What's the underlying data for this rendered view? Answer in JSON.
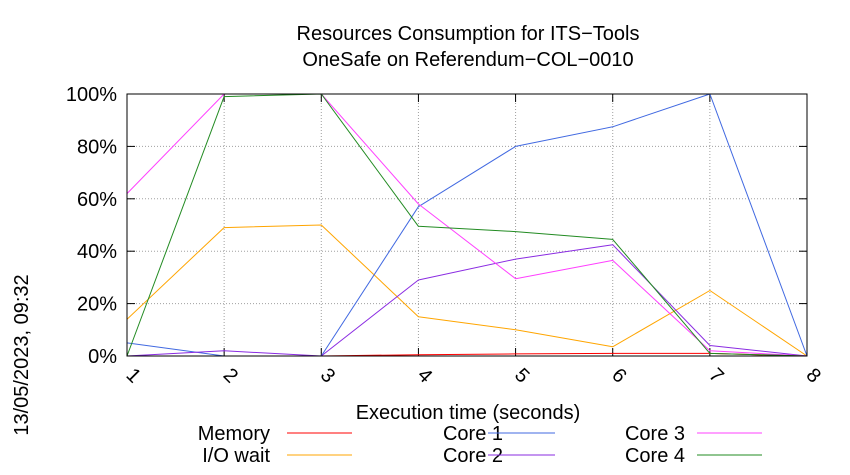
{
  "chart_data": {
    "type": "line",
    "title": "Resources Consumption for ITS−Tools",
    "subtitle": "OneSafe on Referendum−COL−0010",
    "xlabel": "Execution time (seconds)",
    "ylabel": "",
    "side_label": "13/05/2023, 09:32",
    "xlim": [
      1,
      8
    ],
    "ylim": [
      0,
      100
    ],
    "x_ticks": [
      "1",
      "2",
      "3",
      "4",
      "5",
      "6",
      "7",
      "8"
    ],
    "y_ticks": [
      "0%",
      "20%",
      "40%",
      "60%",
      "80%",
      "100%"
    ],
    "grid": true,
    "legend_position": "bottom",
    "x": [
      1,
      2,
      3,
      4,
      5,
      6,
      7,
      8
    ],
    "series": [
      {
        "name": "Memory",
        "color": "#ff0000",
        "values": [
          0,
          0,
          0,
          0.5,
          0.8,
          1,
          1,
          0
        ]
      },
      {
        "name": "I/O wait",
        "color": "#ffa500",
        "values": [
          14,
          49,
          50,
          15,
          10,
          3.5,
          25,
          0
        ]
      },
      {
        "name": "Core 1",
        "color": "#4169e1",
        "values": [
          5,
          0,
          0,
          57,
          80,
          87.5,
          100,
          0
        ]
      },
      {
        "name": "Core 2",
        "color": "#8a2be2",
        "values": [
          0,
          2,
          0,
          29,
          37,
          42.5,
          4,
          0
        ]
      },
      {
        "name": "Core 3",
        "color": "#ff40ff",
        "values": [
          62,
          100,
          100,
          58,
          29.5,
          36.5,
          2,
          0
        ]
      },
      {
        "name": "Core 4",
        "color": "#228b22",
        "values": [
          0,
          99,
          100,
          49.5,
          47.5,
          44.5,
          1,
          0
        ]
      }
    ]
  }
}
